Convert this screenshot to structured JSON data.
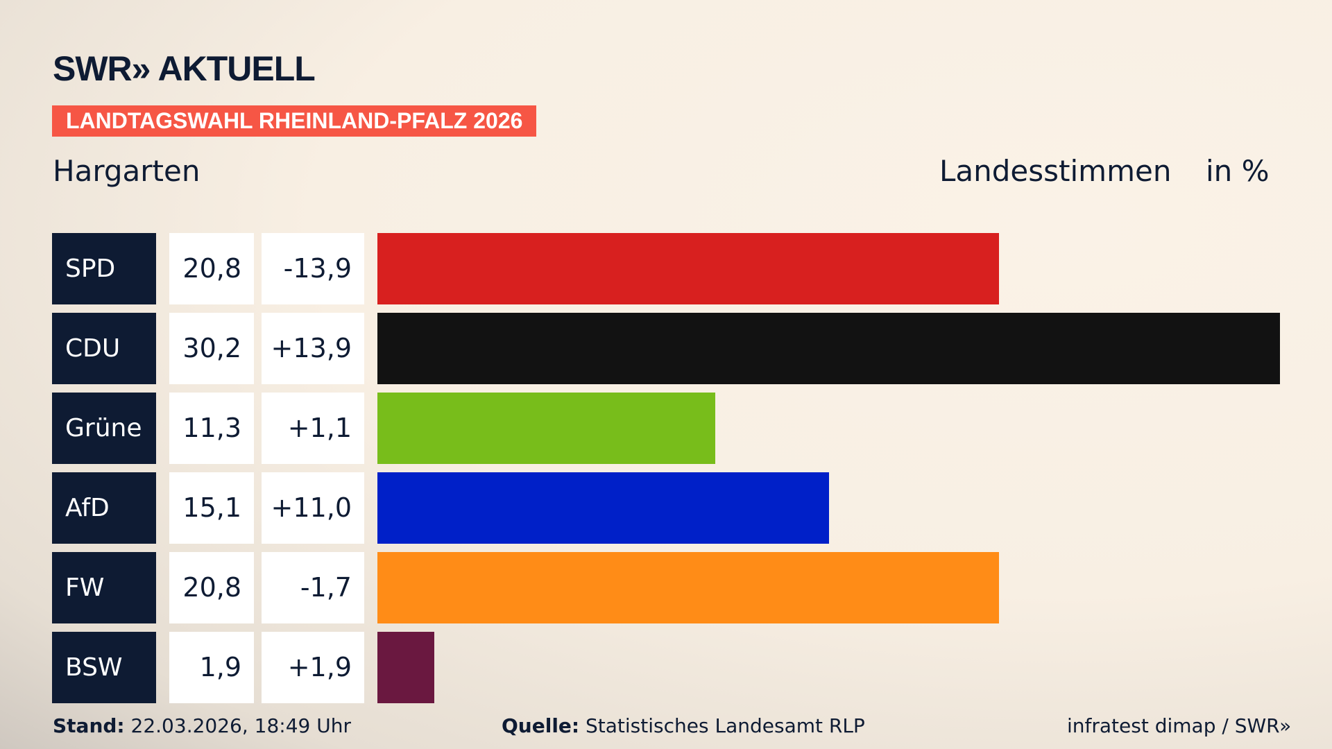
{
  "header": {
    "logo": "SWR» AKTUELL",
    "banner": "LANDTAGSWAHL RHEINLAND-PFALZ 2026",
    "location": "Hargarten",
    "measure": "Landesstimmen",
    "unit": "in %"
  },
  "chart_data": {
    "type": "bar",
    "orientation": "horizontal",
    "categories": [
      "SPD",
      "CDU",
      "Grüne",
      "AfD",
      "FW",
      "BSW"
    ],
    "values": [
      20.8,
      30.2,
      11.3,
      15.1,
      20.8,
      1.9
    ],
    "values_label": [
      "20,8",
      "30,2",
      "11,3",
      "15,1",
      "20,8",
      "1,9"
    ],
    "diff_label": [
      "-13,9",
      "+13,9",
      "+1,1",
      "+11,0",
      "-1,7",
      "+1,9"
    ],
    "colors": [
      "#d8201f",
      "#121212",
      "#78bd1b",
      "#0020c8",
      "#ff8c17",
      "#6a1840"
    ],
    "xlim": [
      0,
      30.2
    ]
  },
  "footer": {
    "stand_label": "Stand:",
    "stand": "22.03.2026, 18:49 Uhr",
    "source_label": "Quelle:",
    "source": "Statistisches Landesamt RLP",
    "credit": "infratest dimap / SWR»"
  }
}
